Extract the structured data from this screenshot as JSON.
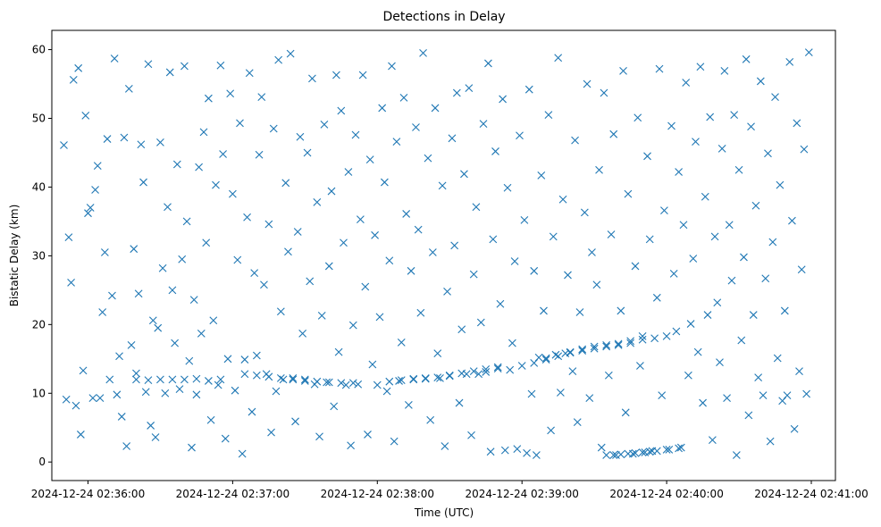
{
  "chart_data": {
    "type": "scatter",
    "title": "Detections in Delay",
    "xlabel": "Time (UTC)",
    "ylabel": "Bistatic Delay (km)",
    "marker": "x",
    "color": "#1f77b4",
    "grid": false,
    "legend": "none",
    "x_is_time": true,
    "xlim": [
      "2024-12-24 02:35:45",
      "2024-12-24 02:41:10"
    ],
    "ylim": [
      -2.7,
      62.8
    ],
    "x_ticks": [
      {
        "label": "2024-12-24 02:36:00",
        "time": "2024-12-24 02:36:00"
      },
      {
        "label": "2024-12-24 02:37:00",
        "time": "2024-12-24 02:37:00"
      },
      {
        "label": "2024-12-24 02:38:00",
        "time": "2024-12-24 02:38:00"
      },
      {
        "label": "2024-12-24 02:39:00",
        "time": "2024-12-24 02:39:00"
      },
      {
        "label": "2024-12-24 02:40:00",
        "time": "2024-12-24 02:40:00"
      },
      {
        "label": "2024-12-24 02:41:00",
        "time": "2024-12-24 02:41:00"
      }
    ],
    "y_ticks": [
      0,
      10,
      20,
      30,
      40,
      50,
      60
    ],
    "series": [
      {
        "x": [
          "02:35:50",
          "02:35:51",
          "02:35:52",
          "02:35:53",
          "02:35:54",
          "02:35:55",
          "02:35:56",
          "02:35:57",
          "02:35:58",
          "02:35:59",
          "02:36:00",
          "02:36:01",
          "02:36:02",
          "02:36:03",
          "02:36:04",
          "02:36:05",
          "02:36:06",
          "02:36:07",
          "02:36:08",
          "02:36:09",
          "02:36:10",
          "02:36:11",
          "02:36:12",
          "02:36:13",
          "02:36:14",
          "02:36:15",
          "02:36:16",
          "02:36:17",
          "02:36:18",
          "02:36:19",
          "02:36:20",
          "02:36:21",
          "02:36:22",
          "02:36:23",
          "02:36:24",
          "02:36:25",
          "02:36:26",
          "02:36:27",
          "02:36:28",
          "02:36:29",
          "02:36:30",
          "02:36:31",
          "02:36:32",
          "02:36:33",
          "02:36:34",
          "02:36:35",
          "02:36:36",
          "02:36:37",
          "02:36:38",
          "02:36:39",
          "02:36:40",
          "02:36:41",
          "02:36:42",
          "02:36:43",
          "02:36:44",
          "02:36:45",
          "02:36:46",
          "02:36:47",
          "02:36:48",
          "02:36:49",
          "02:36:50",
          "02:36:51",
          "02:36:52",
          "02:36:53",
          "02:36:54",
          "02:36:55",
          "02:36:56",
          "02:36:57",
          "02:36:58",
          "02:36:59",
          "02:37:00",
          "02:37:01",
          "02:37:02",
          "02:37:03",
          "02:37:04",
          "02:37:05",
          "02:37:06",
          "02:37:07",
          "02:37:08",
          "02:37:09",
          "02:37:10",
          "02:37:11",
          "02:37:12",
          "02:37:13",
          "02:37:14",
          "02:37:15",
          "02:37:16",
          "02:37:17",
          "02:37:18",
          "02:37:19",
          "02:37:20",
          "02:37:21",
          "02:37:22",
          "02:37:23",
          "02:37:24",
          "02:37:25",
          "02:37:26",
          "02:37:27",
          "02:37:28",
          "02:37:29",
          "02:37:30",
          "02:37:31",
          "02:37:32",
          "02:37:33",
          "02:37:34",
          "02:37:35",
          "02:37:36",
          "02:37:37",
          "02:37:38",
          "02:37:39",
          "02:37:40",
          "02:37:41",
          "02:37:42",
          "02:37:43",
          "02:37:44",
          "02:37:45",
          "02:37:46",
          "02:37:47",
          "02:37:48",
          "02:37:49",
          "02:37:50",
          "02:37:51",
          "02:37:52",
          "02:37:53",
          "02:37:54",
          "02:37:55",
          "02:37:56",
          "02:37:57",
          "02:37:58",
          "02:37:59",
          "02:38:00",
          "02:38:01",
          "02:38:02",
          "02:38:03",
          "02:38:04",
          "02:38:05",
          "02:38:06",
          "02:38:07",
          "02:38:08",
          "02:38:09",
          "02:38:10",
          "02:38:11",
          "02:38:12",
          "02:38:13",
          "02:38:14",
          "02:38:15",
          "02:38:16",
          "02:38:17",
          "02:38:18",
          "02:38:19",
          "02:38:20",
          "02:38:21",
          "02:38:22",
          "02:38:23",
          "02:38:24",
          "02:38:25",
          "02:38:26",
          "02:38:27",
          "02:38:28",
          "02:38:29",
          "02:38:30",
          "02:38:31",
          "02:38:32",
          "02:38:33",
          "02:38:34",
          "02:38:35",
          "02:38:36",
          "02:38:37",
          "02:38:38",
          "02:38:39",
          "02:38:40",
          "02:38:41",
          "02:38:42",
          "02:38:43",
          "02:38:44",
          "02:38:45",
          "02:38:46",
          "02:38:47",
          "02:38:48",
          "02:38:49",
          "02:38:50",
          "02:38:51",
          "02:38:52",
          "02:38:53",
          "02:38:54",
          "02:38:55",
          "02:38:56",
          "02:38:57",
          "02:38:58",
          "02:38:59",
          "02:39:00",
          "02:39:01",
          "02:39:02",
          "02:39:03",
          "02:39:04",
          "02:39:05",
          "02:39:06",
          "02:39:07",
          "02:39:08",
          "02:39:09",
          "02:39:10",
          "02:39:11",
          "02:39:12",
          "02:39:13",
          "02:39:14",
          "02:39:15",
          "02:39:16",
          "02:39:17",
          "02:39:18",
          "02:39:19",
          "02:39:20",
          "02:39:21",
          "02:39:22",
          "02:39:23",
          "02:39:24",
          "02:39:25",
          "02:39:26",
          "02:39:27",
          "02:39:28",
          "02:39:29",
          "02:39:30",
          "02:39:31",
          "02:39:32",
          "02:39:33",
          "02:39:34",
          "02:39:35",
          "02:39:36",
          "02:39:37",
          "02:39:38",
          "02:39:39",
          "02:39:40",
          "02:39:41",
          "02:39:42",
          "02:39:43",
          "02:39:44",
          "02:39:45",
          "02:39:46",
          "02:39:47",
          "02:39:48",
          "02:39:49",
          "02:39:50",
          "02:39:51",
          "02:39:52",
          "02:39:53",
          "02:39:54",
          "02:39:55",
          "02:39:56",
          "02:39:57",
          "02:39:58",
          "02:39:59",
          "02:40:00",
          "02:40:01",
          "02:40:02",
          "02:40:03",
          "02:40:04",
          "02:40:05",
          "02:40:06",
          "02:40:07",
          "02:40:08",
          "02:40:09",
          "02:40:10",
          "02:40:11",
          "02:40:12",
          "02:40:13",
          "02:40:14",
          "02:40:15",
          "02:40:16",
          "02:40:17",
          "02:40:18",
          "02:40:19",
          "02:40:20",
          "02:40:21",
          "02:40:22",
          "02:40:23",
          "02:40:24",
          "02:40:25",
          "02:40:26",
          "02:40:27",
          "02:40:28",
          "02:40:29",
          "02:40:30",
          "02:40:31",
          "02:40:32",
          "02:40:33",
          "02:40:34",
          "02:40:35",
          "02:40:36",
          "02:40:37",
          "02:40:38",
          "02:40:39",
          "02:40:40",
          "02:40:41",
          "02:40:42",
          "02:40:43",
          "02:40:44",
          "02:40:45",
          "02:40:46",
          "02:40:47",
          "02:40:48",
          "02:40:49",
          "02:40:50",
          "02:40:51",
          "02:40:52",
          "02:40:53",
          "02:40:54",
          "02:40:55",
          "02:40:56",
          "02:40:57",
          "02:40:58",
          "02:40:59",
          "02:36:20",
          "02:36:25",
          "02:36:30",
          "02:36:35",
          "02:36:40",
          "02:36:45",
          "02:36:50",
          "02:36:55",
          "02:37:05",
          "02:37:10",
          "02:37:15",
          "02:37:20",
          "02:37:25",
          "02:37:30",
          "02:37:35",
          "02:37:40",
          "02:37:45",
          "02:37:50",
          "02:38:05",
          "02:38:10",
          "02:38:15",
          "02:38:20",
          "02:38:25",
          "02:38:30",
          "02:38:35",
          "02:38:40",
          "02:38:45",
          "02:38:50",
          "02:39:05",
          "02:39:10",
          "02:39:15",
          "02:39:20",
          "02:39:25",
          "02:39:30",
          "02:39:35",
          "02:39:40",
          "02:39:45",
          "02:39:50",
          "02:39:35",
          "02:39:38",
          "02:39:41",
          "02:39:44",
          "02:39:47",
          "02:39:50",
          "02:39:53",
          "02:39:56",
          "02:40:00",
          "02:40:05"
        ],
        "y": [
          46.1,
          9.1,
          32.7,
          26.1,
          55.6,
          8.2,
          57.3,
          4.0,
          13.3,
          50.4,
          36.2,
          37.0,
          9.3,
          39.6,
          43.1,
          9.3,
          21.8,
          30.5,
          47.0,
          12.0,
          24.2,
          58.7,
          9.8,
          15.4,
          6.6,
          47.2,
          2.3,
          54.3,
          17.0,
          31.0,
          12.9,
          24.5,
          46.2,
          40.7,
          10.2,
          57.9,
          5.3,
          20.6,
          3.6,
          19.5,
          46.5,
          28.2,
          10.0,
          37.1,
          56.7,
          25.0,
          17.3,
          43.3,
          10.6,
          29.5,
          57.6,
          35.0,
          14.7,
          2.1,
          23.6,
          9.8,
          42.9,
          18.7,
          48.0,
          31.9,
          52.9,
          6.1,
          20.6,
          40.3,
          11.2,
          57.7,
          44.8,
          3.4,
          15.0,
          53.6,
          39.0,
          10.4,
          29.4,
          49.3,
          1.2,
          14.9,
          35.6,
          56.6,
          7.3,
          27.5,
          15.5,
          44.7,
          53.1,
          25.8,
          12.8,
          34.6,
          4.3,
          48.5,
          10.3,
          58.5,
          21.9,
          12.0,
          40.6,
          30.6,
          59.4,
          12.2,
          5.9,
          33.5,
          47.3,
          18.7,
          12.0,
          45.0,
          26.3,
          55.8,
          11.3,
          37.8,
          3.7,
          21.3,
          49.1,
          11.6,
          28.5,
          39.4,
          8.1,
          56.3,
          16.0,
          51.1,
          31.9,
          11.2,
          42.2,
          2.4,
          19.9,
          47.6,
          11.3,
          35.3,
          56.3,
          25.5,
          4.0,
          44.0,
          14.2,
          33.0,
          11.2,
          21.1,
          51.5,
          40.7,
          10.3,
          29.3,
          57.6,
          3.0,
          46.6,
          11.8,
          17.4,
          53.0,
          36.1,
          8.3,
          27.8,
          12.1,
          48.7,
          33.8,
          21.7,
          59.5,
          12.2,
          44.2,
          6.1,
          30.5,
          51.5,
          15.8,
          12.2,
          40.2,
          2.3,
          24.8,
          12.5,
          47.1,
          31.5,
          53.7,
          8.6,
          19.3,
          41.9,
          12.8,
          54.4,
          3.9,
          27.3,
          37.1,
          12.8,
          20.3,
          49.2,
          13.1,
          58.0,
          1.5,
          32.4,
          45.2,
          13.6,
          23.0,
          52.8,
          1.7,
          39.9,
          13.4,
          17.3,
          29.2,
          1.9,
          47.5,
          14.0,
          35.2,
          1.3,
          54.2,
          9.9,
          27.8,
          1.0,
          15.2,
          41.7,
          22.0,
          15.1,
          50.5,
          4.6,
          32.8,
          15.6,
          58.8,
          10.1,
          38.2,
          15.8,
          27.2,
          16.0,
          13.2,
          46.8,
          5.8,
          21.8,
          16.2,
          36.3,
          55.0,
          9.3,
          30.5,
          16.5,
          25.8,
          42.5,
          2.1,
          53.7,
          16.8,
          12.6,
          33.1,
          47.7,
          1.0,
          17.0,
          22.0,
          56.9,
          7.2,
          39.0,
          17.3,
          1.2,
          28.5,
          50.1,
          14.0,
          17.8,
          1.4,
          44.5,
          32.4,
          1.6,
          18.0,
          23.9,
          57.2,
          9.7,
          36.6,
          18.3,
          1.8,
          48.9,
          27.4,
          19.0,
          42.2,
          2.1,
          34.5,
          55.2,
          12.6,
          20.1,
          29.6,
          46.6,
          16.0,
          57.5,
          8.6,
          38.6,
          21.4,
          50.2,
          3.2,
          32.8,
          23.2,
          14.5,
          45.6,
          56.9,
          9.3,
          34.5,
          26.4,
          50.5,
          1.0,
          42.5,
          17.7,
          29.8,
          58.6,
          6.8,
          48.8,
          21.4,
          37.3,
          12.3,
          55.4,
          9.7,
          26.7,
          44.9,
          3.0,
          32.0,
          53.1,
          15.1,
          40.3,
          8.9,
          22.0,
          9.7,
          58.2,
          35.1,
          4.8,
          49.3,
          13.2,
          28.0,
          45.5,
          9.9,
          59.6,
          12.0,
          11.9,
          12.0,
          12.0,
          12.0,
          12.1,
          11.8,
          12.0,
          12.8,
          12.6,
          12.4,
          12.2,
          12.0,
          11.8,
          11.7,
          11.6,
          11.5,
          11.5,
          11.7,
          11.9,
          12.0,
          12.1,
          12.3,
          12.6,
          12.9,
          13.2,
          13.5,
          13.8,
          14.4,
          14.9,
          15.4,
          15.9,
          16.4,
          16.8,
          17.0,
          17.2,
          17.6,
          18.3,
          1.0,
          1.0,
          1.1,
          1.2,
          1.3,
          1.4,
          1.5,
          1.6,
          1.8,
          2.0
        ]
      }
    ]
  }
}
